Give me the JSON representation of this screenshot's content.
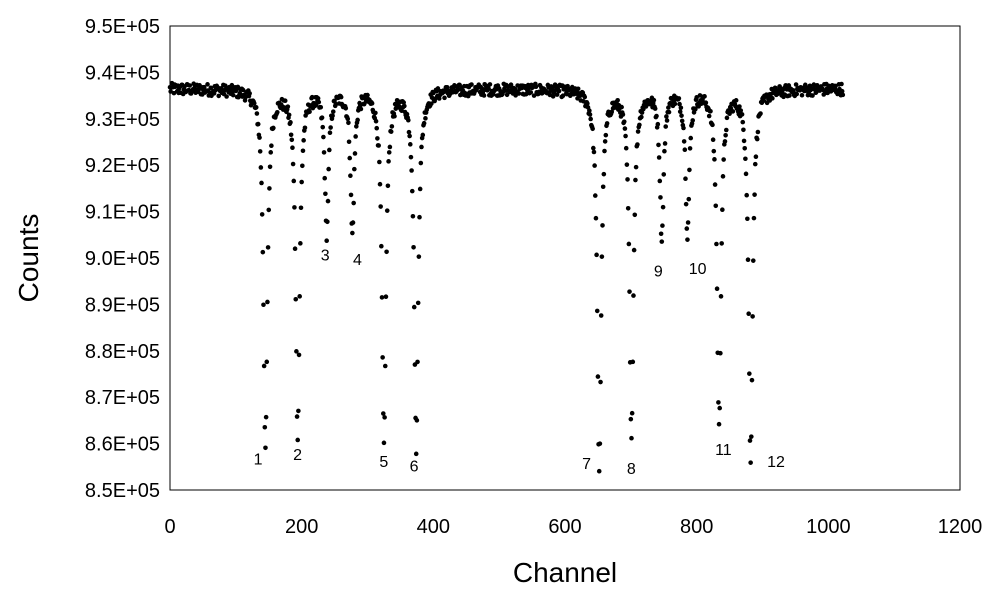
{
  "chart_data": {
    "type": "scatter",
    "xlabel": "Channel",
    "ylabel": "Counts",
    "xlim": [
      0,
      1200
    ],
    "ylim": [
      850000,
      950000
    ],
    "x_ticks": [
      "0",
      "200",
      "400",
      "600",
      "800",
      "1000",
      "1200"
    ],
    "y_ticks": [
      "8.5E+05",
      "8.6E+05",
      "8.7E+05",
      "8.8E+05",
      "8.9E+05",
      "9.0E+05",
      "9.1E+05",
      "9.2E+05",
      "9.3E+05",
      "9.4E+05",
      "9.5E+05"
    ],
    "grid": false,
    "legend": "none",
    "marker_color": "#000000",
    "baseline": 936500,
    "x_range": [
      0,
      1022
    ],
    "dips": [
      {
        "label": "1",
        "channel": 145,
        "min": 859500,
        "width": 3.6
      },
      {
        "label": "2",
        "channel": 194,
        "min": 862500,
        "width": 3.6
      },
      {
        "label": "3",
        "channel": 238,
        "min": 906000,
        "width": 3.4
      },
      {
        "label": "4",
        "channel": 277,
        "min": 906000,
        "width": 3.4
      },
      {
        "label": "5",
        "channel": 325,
        "min": 860500,
        "width": 3.6
      },
      {
        "label": "6",
        "channel": 374,
        "min": 859500,
        "width": 3.6
      },
      {
        "label": "7",
        "channel": 652,
        "min": 855000,
        "width": 3.6
      },
      {
        "label": "8",
        "channel": 701,
        "min": 862000,
        "width": 3.6
      },
      {
        "label": "9",
        "channel": 747,
        "min": 905000,
        "width": 3.4
      },
      {
        "label": "10",
        "channel": 786,
        "min": 906000,
        "width": 3.4
      },
      {
        "label": "11",
        "channel": 834,
        "min": 864000,
        "width": 3.6
      },
      {
        "label": "12",
        "channel": 882,
        "min": 856000,
        "width": 3.6
      }
    ],
    "annotations": [
      {
        "text": "1",
        "x": 127,
        "y": 855500
      },
      {
        "text": "2",
        "x": 187,
        "y": 856500
      },
      {
        "text": "3",
        "x": 229,
        "y": 899500
      },
      {
        "text": "4",
        "x": 278,
        "y": 898500
      },
      {
        "text": "5",
        "x": 318,
        "y": 855000
      },
      {
        "text": "6",
        "x": 364,
        "y": 854000
      },
      {
        "text": "7",
        "x": 626,
        "y": 854500
      },
      {
        "text": "8",
        "x": 694,
        "y": 853500
      },
      {
        "text": "9",
        "x": 735,
        "y": 896000
      },
      {
        "text": "10",
        "x": 788,
        "y": 896500
      },
      {
        "text": "11",
        "x": 828,
        "y": 857500
      },
      {
        "text": "12",
        "x": 907,
        "y": 855000
      }
    ]
  }
}
